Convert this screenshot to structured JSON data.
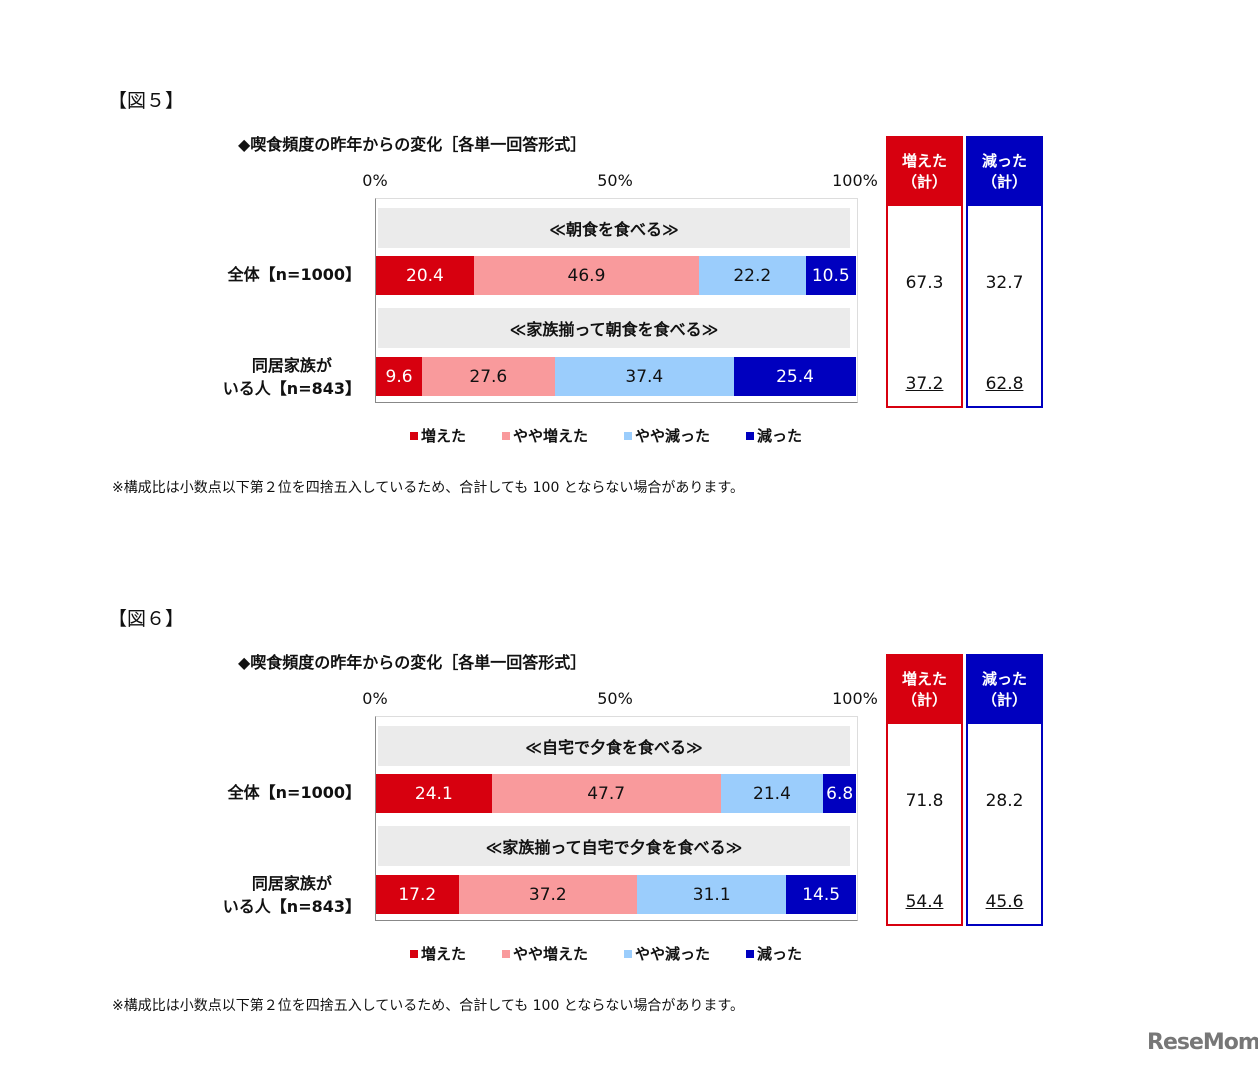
{
  "colors": {
    "increased": "#d7000f",
    "slightly_increased": "#f99a9c",
    "slightly_decreased": "#9bcdfc",
    "decreased": "#0000bf",
    "band": "#ebebeb"
  },
  "logo": "ReseMom",
  "chart_data": [
    {
      "type": "bar",
      "orientation": "horizontal-stacked-100",
      "figure_label": "【図５】",
      "title": "◆喫食頻度の昨年からの変化［各単一回答形式］",
      "xticks": [
        "0%",
        "50%",
        "100%"
      ],
      "xlim": [
        0,
        100
      ],
      "legend": [
        "増えた",
        "やや増えた",
        "やや減った",
        "減った"
      ],
      "legend_placement": "bottom",
      "summary_headers": [
        [
          "増えた",
          "（計）"
        ],
        [
          "減った",
          "（計）"
        ]
      ],
      "groups": [
        {
          "band": "≪朝食を食べる≫",
          "row_label": [
            "全体【n=1000】"
          ],
          "values": [
            20.4,
            46.9,
            22.2,
            10.5
          ],
          "summary": [
            "67.3",
            "32.7"
          ],
          "underline": false
        },
        {
          "band": "≪家族揃って朝食を食べる≫",
          "row_label": [
            "同居家族が",
            "いる人【n=843】"
          ],
          "values": [
            9.6,
            27.6,
            37.4,
            25.4
          ],
          "summary": [
            "37.2",
            "62.8"
          ],
          "underline": true
        }
      ],
      "note": "※構成比は小数点以下第２位を四捨五入しているため、合計しても 100 とならない場合があります。"
    },
    {
      "type": "bar",
      "orientation": "horizontal-stacked-100",
      "figure_label": "【図６】",
      "title": "◆喫食頻度の昨年からの変化［各単一回答形式］",
      "xticks": [
        "0%",
        "50%",
        "100%"
      ],
      "xlim": [
        0,
        100
      ],
      "legend": [
        "増えた",
        "やや増えた",
        "やや減った",
        "減った"
      ],
      "legend_placement": "bottom",
      "summary_headers": [
        [
          "増えた",
          "（計）"
        ],
        [
          "減った",
          "（計）"
        ]
      ],
      "groups": [
        {
          "band": "≪自宅で夕食を食べる≫",
          "row_label": [
            "全体【n=1000】"
          ],
          "values": [
            24.1,
            47.7,
            21.4,
            6.8
          ],
          "summary": [
            "71.8",
            "28.2"
          ],
          "underline": false
        },
        {
          "band": "≪家族揃って自宅で夕食を食べる≫",
          "row_label": [
            "同居家族が",
            "いる人【n=843】"
          ],
          "values": [
            17.2,
            37.2,
            31.1,
            14.5
          ],
          "summary": [
            "54.4",
            "45.6"
          ],
          "underline": true
        }
      ],
      "note": "※構成比は小数点以下第２位を四捨五入しているため、合計しても 100 とならない場合があります。"
    }
  ]
}
